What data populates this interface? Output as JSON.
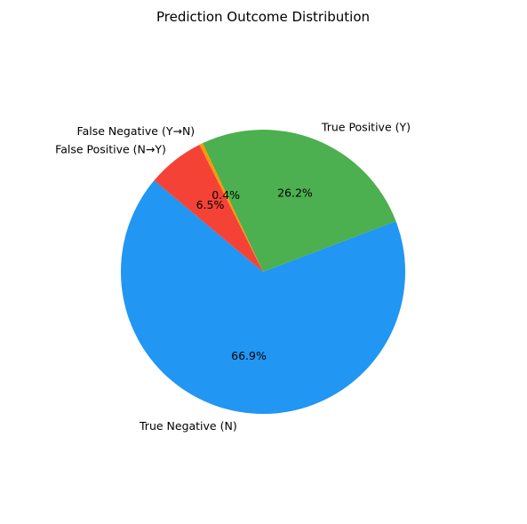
{
  "chart_data": {
    "type": "pie",
    "title": "Prediction Outcome Distribution",
    "start_angle_deg": 140,
    "direction": "counterclockwise",
    "slices": [
      {
        "label": "True Negative (N)",
        "percent": 66.9,
        "percent_label": "66.9%",
        "color": "#2196F3"
      },
      {
        "label": "True Positive (Y)",
        "percent": 26.2,
        "percent_label": "26.2%",
        "color": "#4CAF50"
      },
      {
        "label": "False Negative (Y→N)",
        "percent": 0.4,
        "percent_label": "0.4%",
        "color": "#FF9800"
      },
      {
        "label": "False Positive (N→Y)",
        "percent": 6.5,
        "percent_label": "6.5%",
        "color": "#F44336"
      }
    ]
  }
}
